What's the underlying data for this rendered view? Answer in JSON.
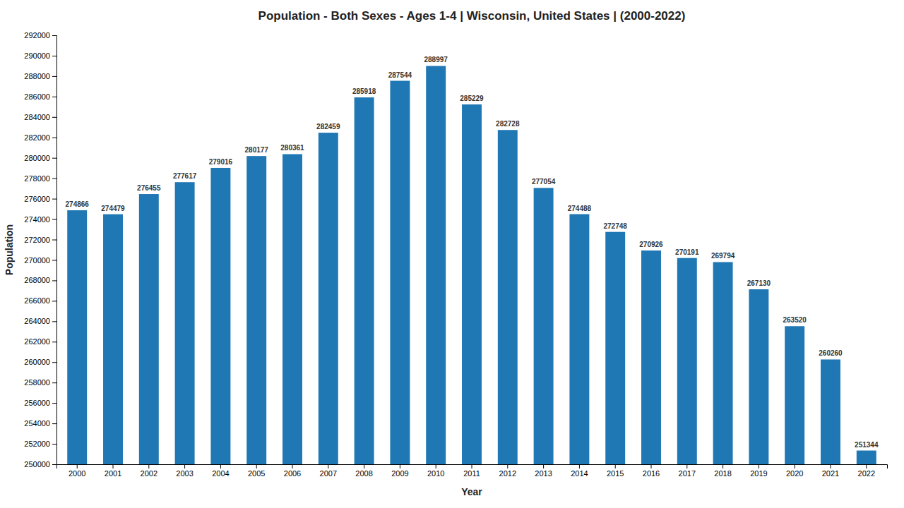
{
  "chart_data": {
    "type": "bar",
    "title": "Population - Both Sexes - Ages 1-4 | Wisconsin, United States |  (2000-2022)",
    "x_label": "Year",
    "y_label": "Population",
    "categories": [
      "2000",
      "2001",
      "2002",
      "2003",
      "2004",
      "2005",
      "2006",
      "2007",
      "2008",
      "2009",
      "2010",
      "2011",
      "2012",
      "2013",
      "2014",
      "2015",
      "2016",
      "2017",
      "2018",
      "2019",
      "2020",
      "2021",
      "2022"
    ],
    "values": [
      274866,
      274479,
      276455,
      277617,
      279016,
      280177,
      280361,
      282459,
      285918,
      287544,
      288997,
      285229,
      282728,
      277054,
      274488,
      272748,
      270926,
      270191,
      269794,
      267130,
      263520,
      260260,
      251344
    ],
    "ylim": [
      250000,
      292000
    ],
    "yticks": [
      250000,
      252000,
      254000,
      256000,
      258000,
      260000,
      262000,
      264000,
      266000,
      268000,
      270000,
      272000,
      274000,
      276000,
      278000,
      280000,
      282000,
      284000,
      286000,
      288000,
      290000,
      292000
    ],
    "grid": false,
    "data_labels": true
  }
}
